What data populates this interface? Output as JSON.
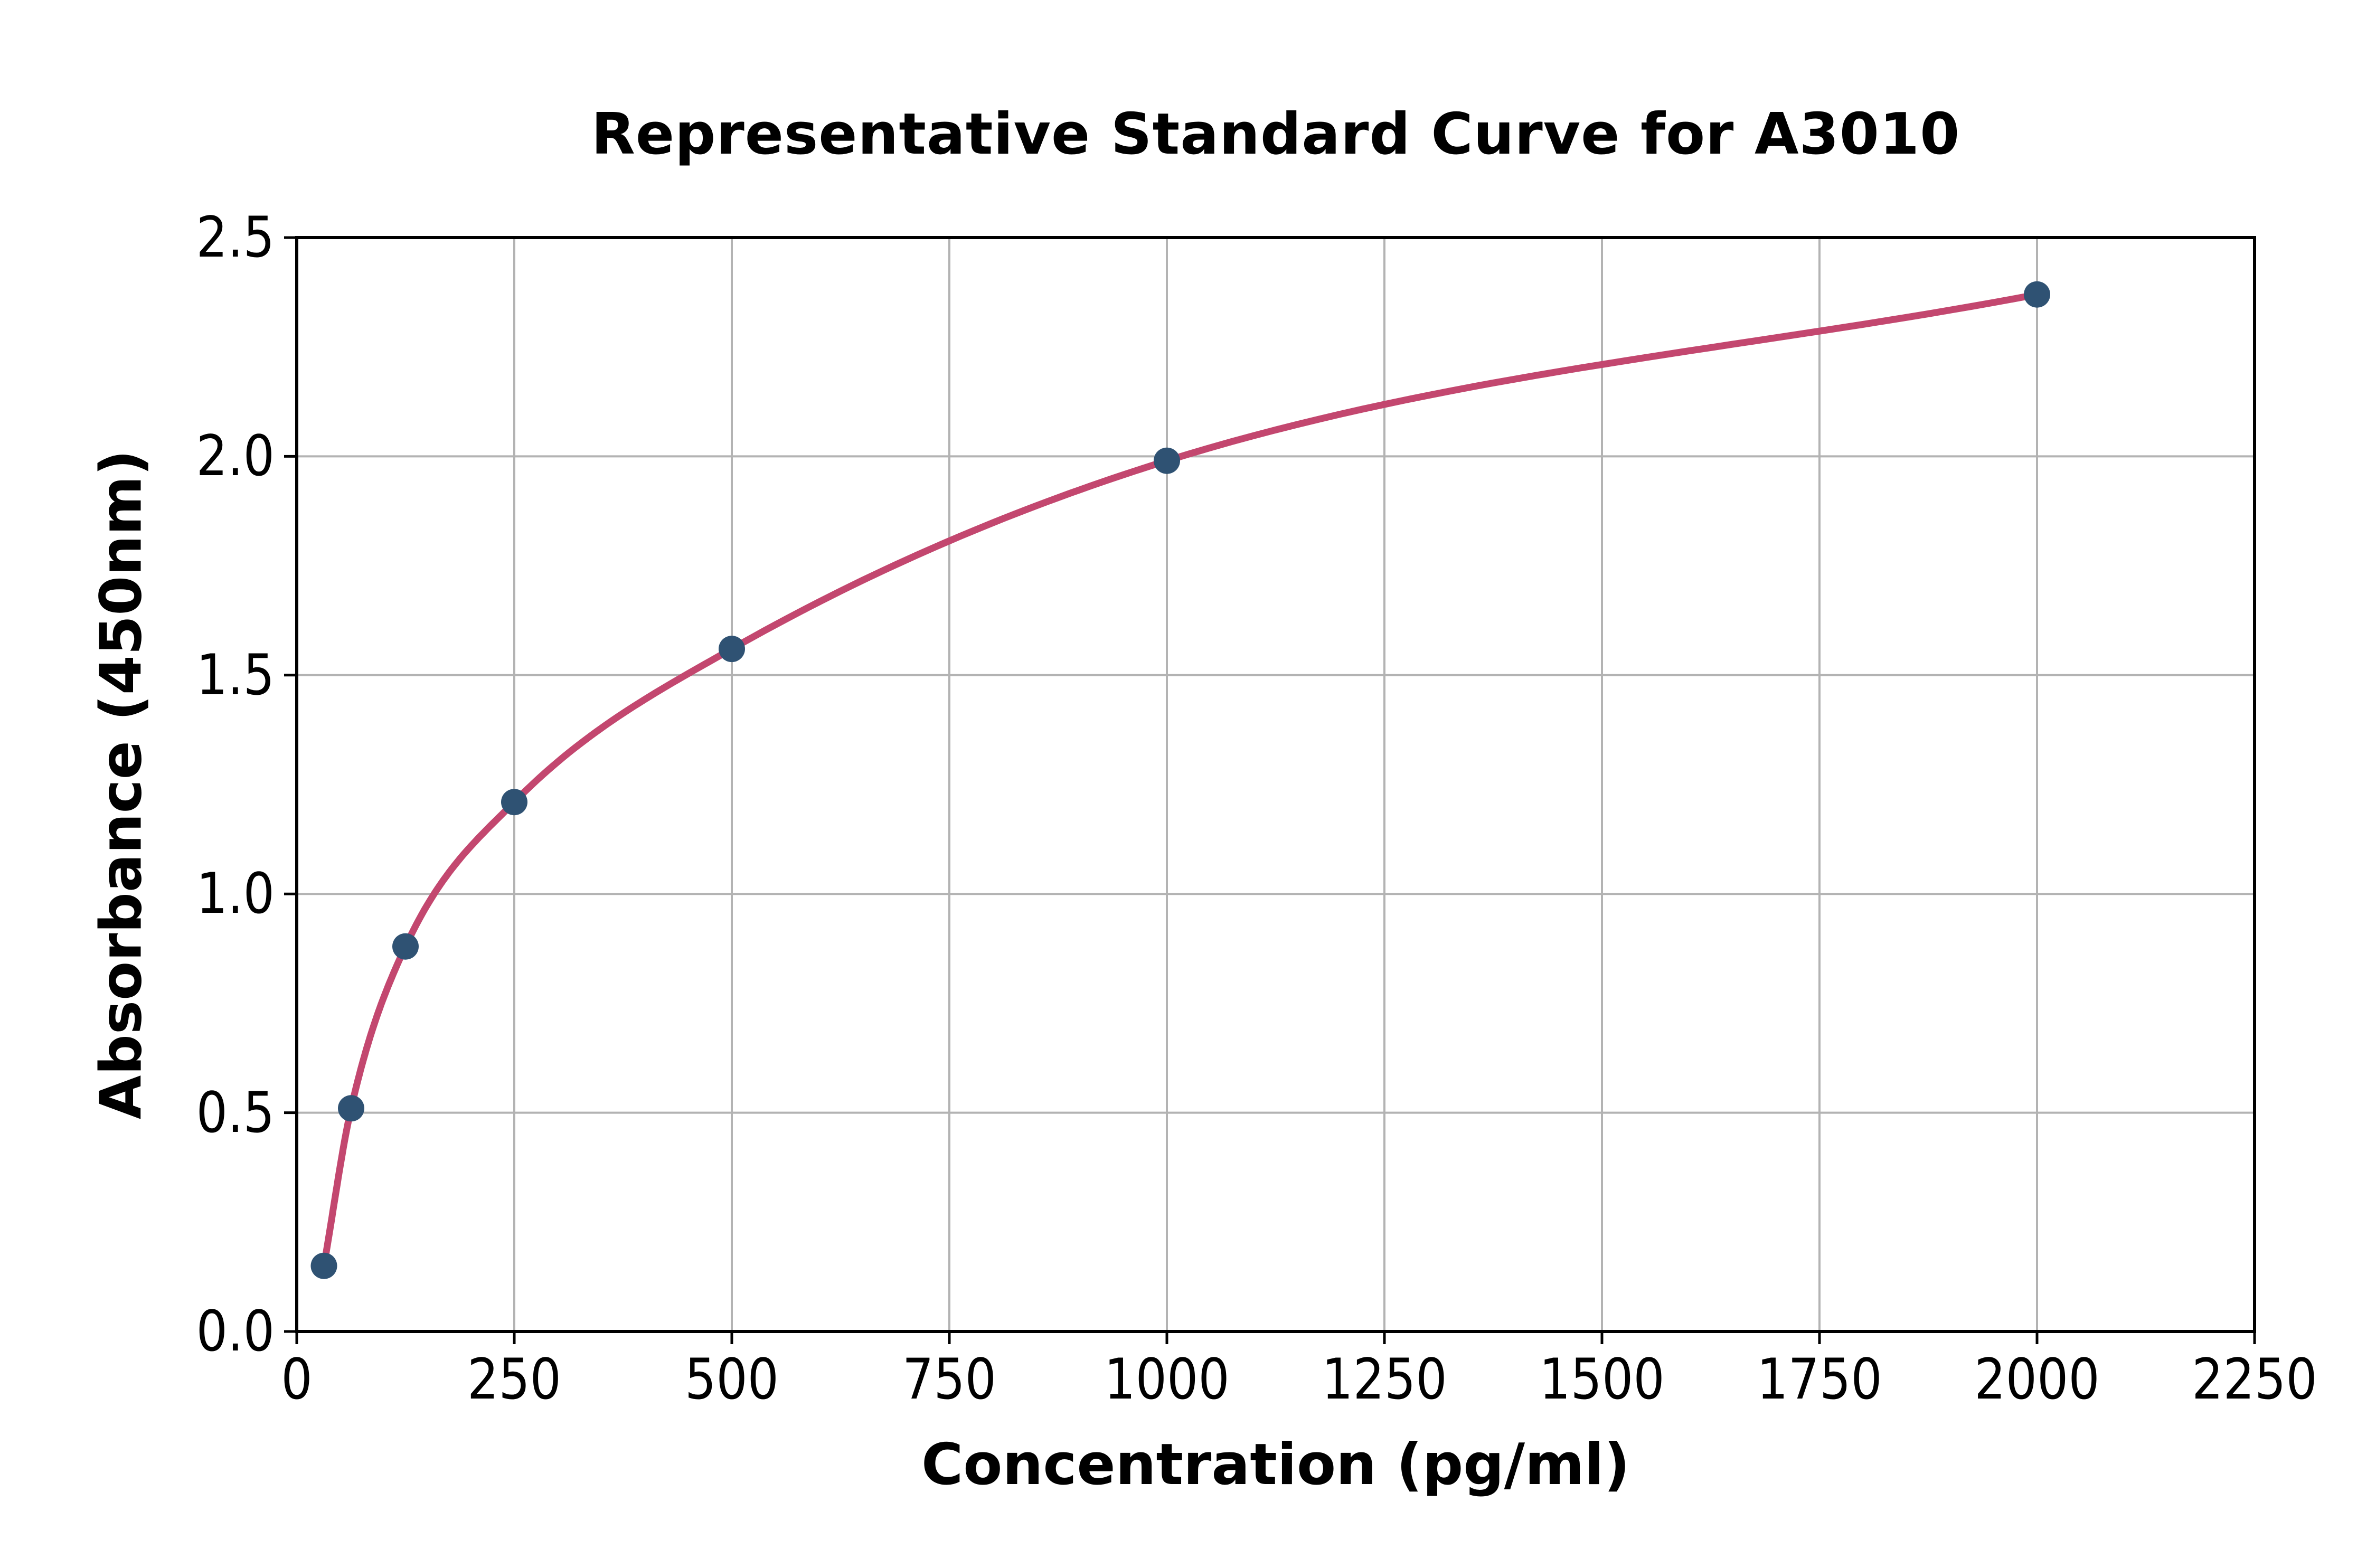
{
  "chart_data": {
    "type": "line",
    "title": "Representative Standard Curve for A3010",
    "xlabel": "Concentration (pg/ml)",
    "ylabel": "Absorbance (450nm)",
    "x": [
      31.25,
      62.5,
      125,
      250,
      500,
      1000,
      2000
    ],
    "y": [
      0.15,
      0.51,
      0.88,
      1.21,
      1.56,
      1.99,
      2.37
    ],
    "xlim": [
      0,
      2250
    ],
    "ylim": [
      0,
      2.5
    ],
    "xtick_labels": [
      "0",
      "250",
      "500",
      "750",
      "1000",
      "1250",
      "1500",
      "1750",
      "2000",
      "2250"
    ],
    "xtick_values": [
      0,
      250,
      500,
      750,
      1000,
      1250,
      1500,
      1750,
      2000,
      2250
    ],
    "ytick_labels": [
      "0.0",
      "0.5",
      "1.0",
      "1.5",
      "2.0",
      "2.5"
    ],
    "ytick_values": [
      0,
      0.5,
      1.0,
      1.5,
      2.0,
      2.5
    ],
    "grid": true,
    "legend_position": "none",
    "line_color": "#c3476f",
    "marker_color": "#2f5273",
    "grid_color": "#b3b3b3",
    "axis_color": "#000000",
    "background_color": "#ffffff"
  }
}
